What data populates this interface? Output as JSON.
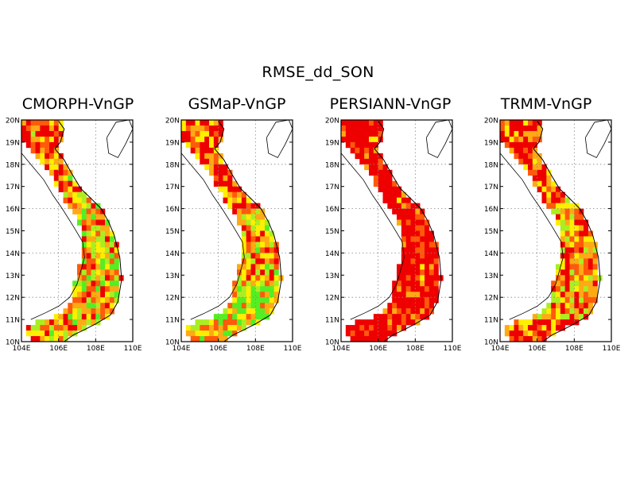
{
  "figure": {
    "title": "RMSE_dd_SON"
  },
  "axes": {
    "lat_labels": [
      "20N",
      "19N",
      "18N",
      "17N",
      "16N",
      "15N",
      "14N",
      "13N",
      "12N",
      "11N",
      "10N"
    ],
    "lon_labels": [
      "104E",
      "106E",
      "108E",
      "110E"
    ],
    "lat_range": [
      10,
      20
    ],
    "lon_range": [
      104,
      110
    ],
    "grid": "dotted"
  },
  "colors": {
    "high": "#ee0000",
    "mid_high": "#ff5a0a",
    "mid": "#ffaa14",
    "mid_low": "#ffee00",
    "low": "#aaee22",
    "lowest": "#55ee22"
  },
  "panels": [
    {
      "title": "CMORPH-VnGP",
      "color_profile": "mixed"
    },
    {
      "title": "GSMaP-VnGP",
      "color_profile": "mixed_south_low"
    },
    {
      "title": "PERSIANN-VnGP",
      "color_profile": "mostly_high"
    },
    {
      "title": "TRMM-VnGP",
      "color_profile": "mixed_high"
    }
  ]
}
